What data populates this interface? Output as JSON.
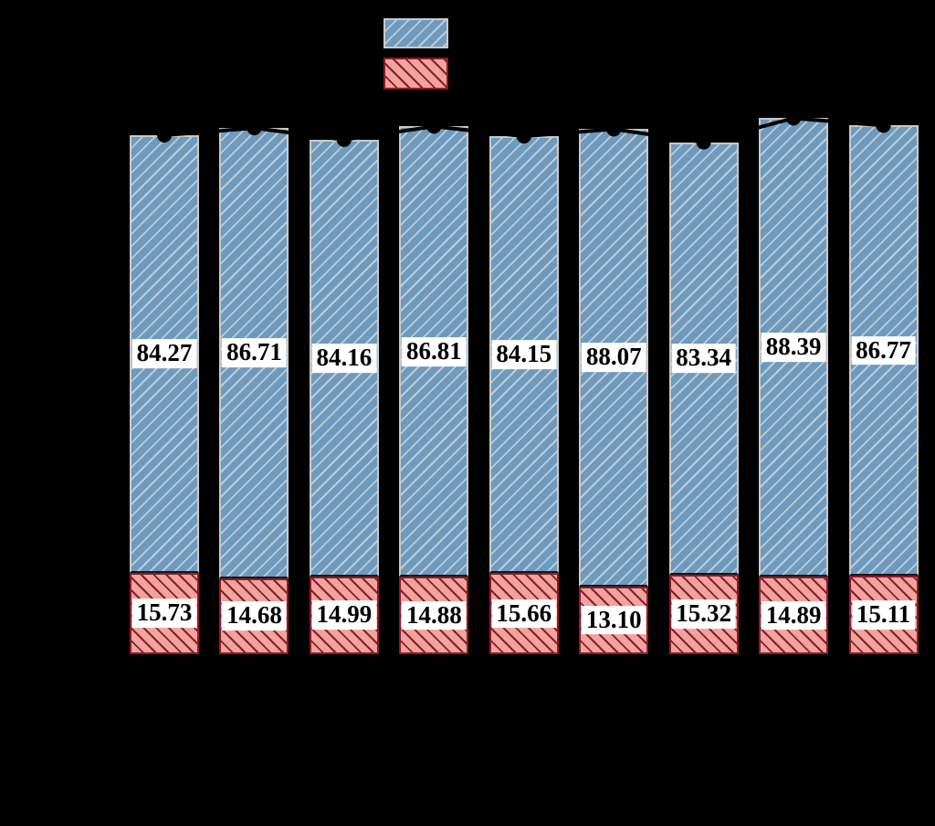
{
  "background_color": "#000000",
  "legend": {
    "position": "top-center",
    "swatches": [
      {
        "name": "blue-hatched-swatch",
        "fill": "#6b9bc0",
        "hatch": "/",
        "hatch_color": "#c9c9c9"
      },
      {
        "name": "pink-hatched-swatch",
        "fill": "#efa49e",
        "hatch": "\\",
        "hatch_color": "#8e1a26"
      }
    ]
  },
  "chart_data": {
    "type": "bar",
    "stacked": true,
    "orientation": "vertical",
    "bar_count": 9,
    "ylim": [
      0,
      105
    ],
    "grid": false,
    "series": [
      {
        "name": "bottom-pink-segment",
        "color": "#efa49e",
        "hatch": "\\",
        "hatch_color": "#8e1a26",
        "values": [
          15.73,
          14.68,
          14.99,
          14.88,
          15.66,
          13.1,
          15.32,
          14.89,
          15.11
        ],
        "labels": [
          "15.73",
          "14.68",
          "14.99",
          "14.88",
          "15.66",
          "13.10",
          "15.32",
          "14.89",
          "15.11"
        ]
      },
      {
        "name": "top-blue-segment",
        "color": "#6b9bc0",
        "hatch": "/",
        "hatch_color": "#c9c9c9",
        "values": [
          84.27,
          86.71,
          84.16,
          86.81,
          84.15,
          88.07,
          83.34,
          88.39,
          86.77
        ],
        "labels": [
          "84.27",
          "86.71",
          "84.16",
          "86.81",
          "84.15",
          "88.07",
          "83.34",
          "88.39",
          "86.77"
        ]
      }
    ],
    "stack_totals": [
      100.0,
      101.39,
      99.15,
      101.69,
      99.81,
      101.17,
      98.66,
      103.28,
      101.88
    ],
    "error_marker_color": "#000000",
    "data_label_style": {
      "background": "#ffffff",
      "text_color": "#000000",
      "bold": true
    }
  }
}
